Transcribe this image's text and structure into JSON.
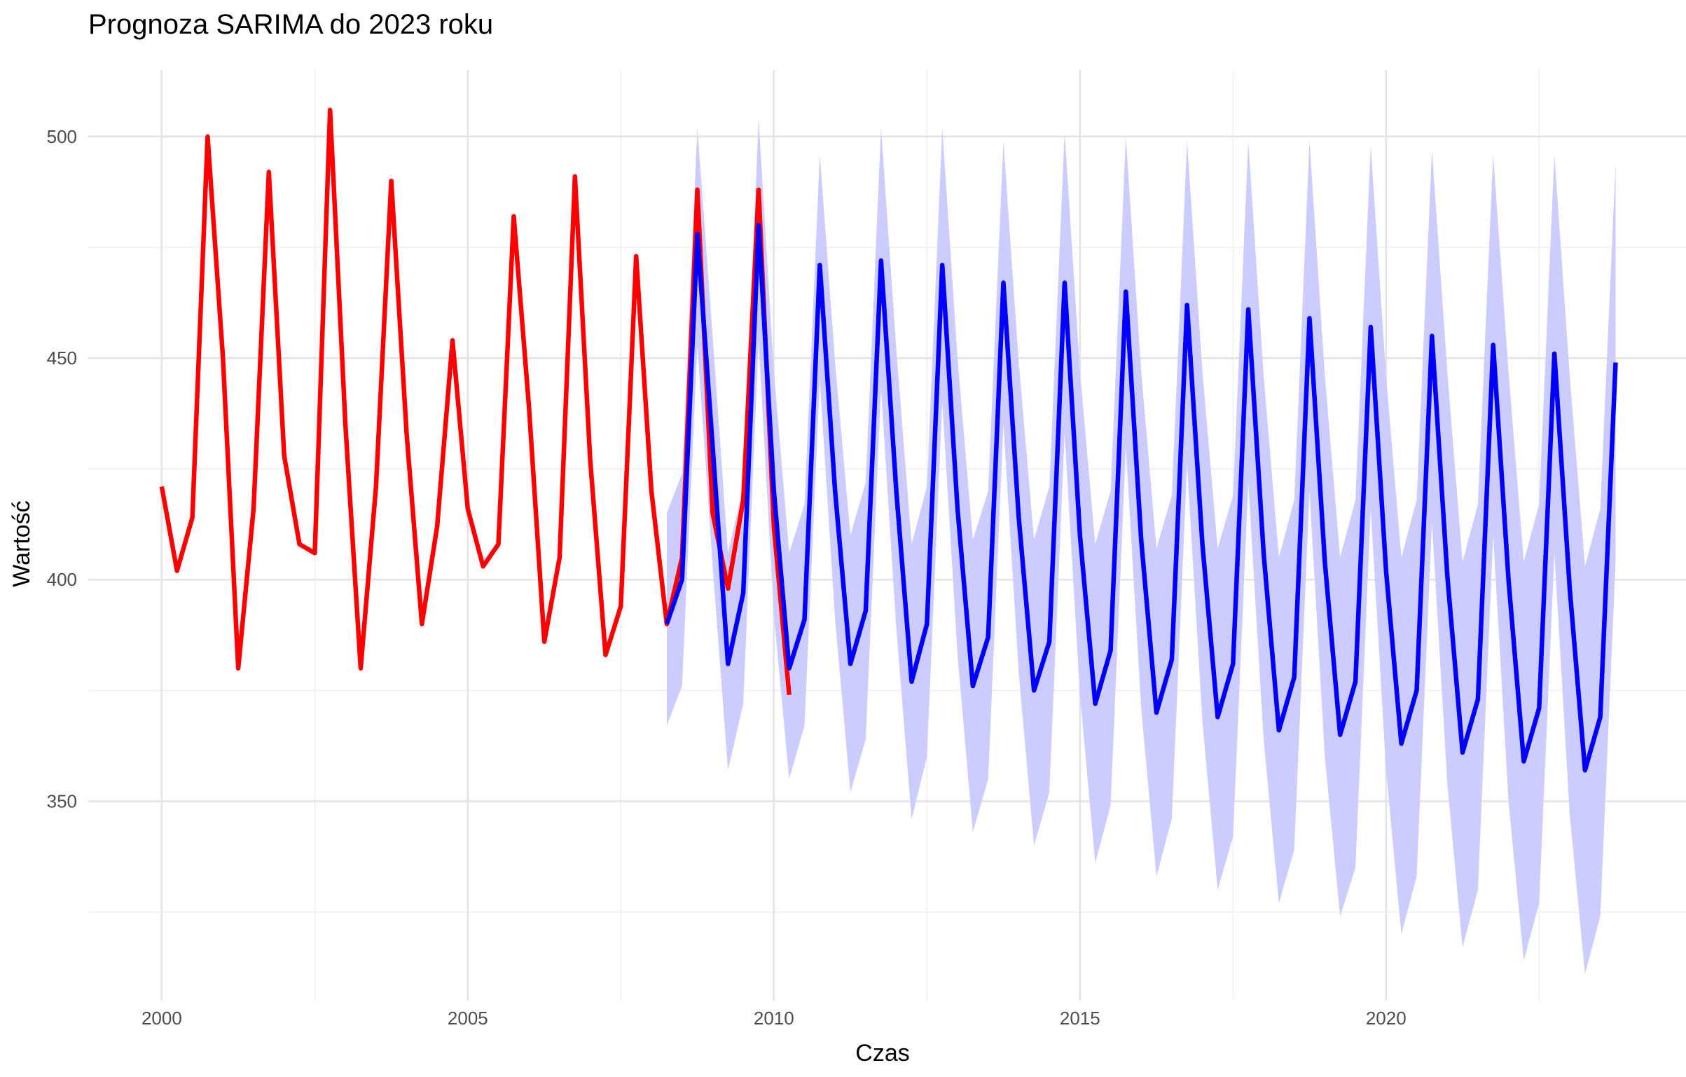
{
  "chart_data": {
    "type": "line",
    "title": "Prognoza SARIMA do 2023 roku",
    "xlabel": "Czas",
    "ylabel": "Wartość",
    "xlim": [
      1998.8,
      2024.9
    ],
    "ylim": [
      305,
      515
    ],
    "x_ticks": [
      2000,
      2005,
      2010,
      2015,
      2020
    ],
    "x_tick_labels": [
      "2000",
      "2005",
      "2010",
      "2015",
      "2020"
    ],
    "y_ticks": [
      350,
      400,
      450,
      500
    ],
    "y_tick_labels": [
      "350",
      "400",
      "450",
      "500"
    ],
    "grid": true,
    "legend": "none",
    "colors": {
      "observed": "#ff0000",
      "forecast": "#0000ff",
      "interval": "#ccccff"
    },
    "start_year": 2000,
    "observations_per_year": 4,
    "series": [
      {
        "key": "observed",
        "values": [
          421,
          402,
          414,
          500,
          450,
          380,
          416,
          492,
          428,
          408,
          406,
          506,
          435,
          380,
          421,
          490,
          433,
          390,
          412,
          454,
          416,
          403,
          408,
          482,
          439,
          386,
          405,
          491,
          427,
          383,
          394,
          473,
          420,
          390,
          405,
          488,
          415,
          398,
          418,
          488,
          412,
          374
        ]
      },
      {
        "key": "forecast",
        "start_index": 33,
        "values": [
          390,
          400,
          478,
          430,
          381,
          397,
          480,
          420,
          380,
          391,
          471,
          420,
          381,
          393,
          472,
          420,
          377,
          390,
          471,
          416,
          376,
          387,
          467,
          414,
          375,
          386,
          467,
          410,
          372,
          384,
          465,
          409,
          370,
          382,
          462,
          408,
          369,
          381,
          461,
          406,
          366,
          378,
          459,
          404,
          365,
          377,
          457,
          402,
          363,
          375,
          455,
          401,
          361,
          373,
          453,
          400,
          359,
          371,
          451,
          398,
          357,
          369,
          449
        ],
        "lower": [
          367,
          376,
          453,
          403,
          357,
          372,
          454,
          392,
          355,
          367,
          445,
          391,
          352,
          364,
          443,
          389,
          346,
          360,
          440,
          383,
          343,
          355,
          435,
          379,
          340,
          352,
          433,
          374,
          336,
          349,
          430,
          371,
          333,
          346,
          426,
          368,
          330,
          342,
          422,
          364,
          327,
          339,
          420,
          360,
          324,
          335,
          416,
          357,
          320,
          333,
          413,
          354,
          317,
          330,
          410,
          350,
          314,
          327,
          406,
          347,
          311,
          324,
          404
        ],
        "upper": [
          415,
          424,
          502,
          455,
          406,
          421,
          504,
          447,
          406,
          417,
          496,
          449,
          410,
          422,
          502,
          452,
          408,
          421,
          502,
          450,
          409,
          420,
          499,
          449,
          409,
          421,
          501,
          447,
          408,
          420,
          500,
          447,
          407,
          419,
          499,
          447,
          407,
          419,
          499,
          446,
          405,
          418,
          499,
          446,
          405,
          418,
          498,
          446,
          405,
          418,
          497,
          447,
          404,
          417,
          496,
          447,
          404,
          417,
          496,
          446,
          403,
          416,
          494
        ]
      }
    ]
  }
}
